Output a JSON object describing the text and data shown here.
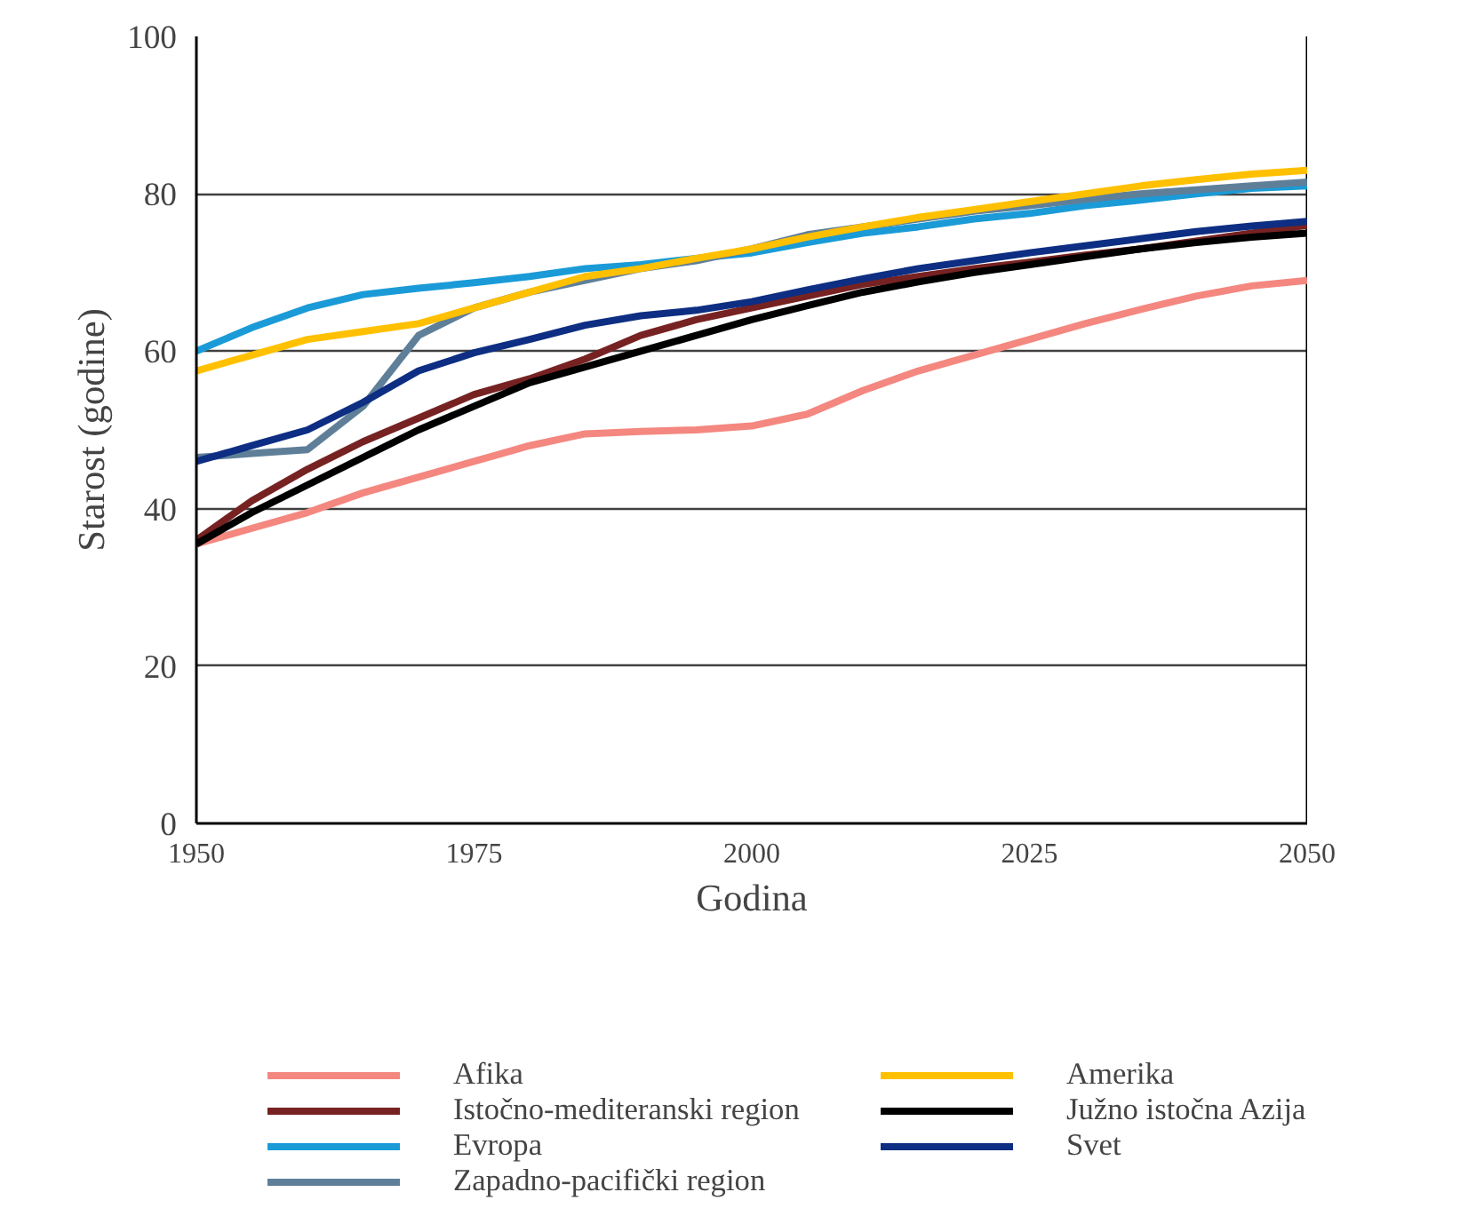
{
  "chart_data": {
    "type": "line",
    "xlabel": "Godina",
    "ylabel": "Starost (godine)",
    "x": [
      1950,
      1955,
      1960,
      1965,
      1970,
      1975,
      1980,
      1985,
      1990,
      1995,
      2000,
      2005,
      2010,
      2015,
      2020,
      2025,
      2030,
      2035,
      2040,
      2045,
      2050
    ],
    "xlim": [
      1950,
      2050
    ],
    "ylim": [
      0,
      100
    ],
    "xticks": [
      1950,
      1975,
      2000,
      2025,
      2050
    ],
    "yticks": [
      0,
      20,
      40,
      60,
      80,
      100
    ],
    "grid": "y",
    "legend": "bottom",
    "marker": "none",
    "line_style": "solid",
    "series": [
      {
        "name": "Afika",
        "color": "#f4877f",
        "values": [
          35.5,
          37.5,
          39.5,
          42,
          44,
          46,
          48,
          49.5,
          49.8,
          50,
          50.5,
          52,
          55,
          57.5,
          59.5,
          61.5,
          63.5,
          65.3,
          67,
          68.3,
          69
        ]
      },
      {
        "name": "Istočno-mediteranski region",
        "color": "#772222",
        "values": [
          36,
          41,
          45,
          48.5,
          51.5,
          54.5,
          56.5,
          59,
          62,
          64,
          65.5,
          67,
          68.5,
          69.5,
          70.5,
          71.3,
          72.2,
          73,
          74,
          75,
          76
        ]
      },
      {
        "name": "Evropa",
        "color": "#1a9bd7",
        "values": [
          60,
          63,
          65.5,
          67.2,
          68,
          68.7,
          69.5,
          70.5,
          71,
          71.8,
          72.5,
          73.8,
          75,
          75.8,
          76.8,
          77.5,
          78.5,
          79.2,
          80,
          80.7,
          81
        ]
      },
      {
        "name": "Zapadno-pacifički region",
        "color": "#5f7f99",
        "values": [
          46.5,
          47,
          47.5,
          53,
          62,
          65.5,
          67.5,
          69,
          70.5,
          71.5,
          73,
          74.8,
          75.8,
          76.8,
          77.8,
          78.5,
          79.3,
          80,
          80.5,
          81,
          81.5
        ]
      },
      {
        "name": "Amerika",
        "color": "#ffc000",
        "values": [
          57.5,
          59.5,
          61.5,
          62.5,
          63.5,
          65.5,
          67.5,
          69.5,
          70.5,
          71.8,
          73,
          74.5,
          75.8,
          77,
          78,
          79,
          80,
          81,
          81.8,
          82.5,
          83
        ]
      },
      {
        "name": "Južno istočna Azija",
        "color": "#000000",
        "values": [
          35.5,
          39.5,
          43,
          46.5,
          50,
          53,
          56,
          58,
          60,
          62,
          64,
          65.8,
          67.5,
          68.8,
          70,
          71,
          72,
          73,
          73.8,
          74.5,
          75
        ]
      },
      {
        "name": "Svet",
        "color": "#0d2e82",
        "values": [
          46,
          48,
          50,
          53.5,
          57.5,
          59.8,
          61.5,
          63.3,
          64.5,
          65.2,
          66.3,
          67.8,
          69.2,
          70.5,
          71.5,
          72.5,
          73.4,
          74.3,
          75.2,
          75.9,
          76.5
        ]
      }
    ]
  }
}
